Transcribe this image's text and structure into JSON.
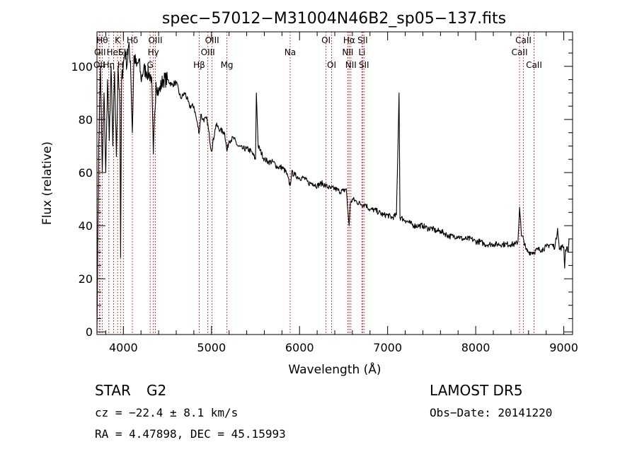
{
  "chart_data": {
    "type": "line",
    "title": "spec−57012−M31004N46B2_sp05−137.fits",
    "xlabel": "Wavelength (Å)",
    "ylabel": "Flux (relative)",
    "xlim": [
      3700,
      9100
    ],
    "ylim": [
      -1,
      113
    ],
    "xticks": [
      4000,
      5000,
      6000,
      7000,
      8000,
      9000
    ],
    "yticks": [
      0,
      20,
      40,
      60,
      80,
      100
    ],
    "grid": false,
    "series": [
      {
        "x": [
          3700,
          3720,
          3740,
          3760,
          3780,
          3800,
          3820,
          3840,
          3860,
          3880,
          3900,
          3920,
          3940,
          3960,
          3968,
          3980,
          4000,
          4020,
          4040,
          4060,
          4080,
          4102,
          4120,
          4150,
          4180,
          4200,
          4230,
          4260,
          4290,
          4320,
          4340,
          4370,
          4400,
          4450,
          4500,
          4550,
          4600,
          4650,
          4700,
          4750,
          4800,
          4830,
          4861,
          4880,
          4900,
          4950,
          5000,
          5050,
          5100,
          5150,
          5175,
          5200,
          5250,
          5300,
          5350,
          5400,
          5450,
          5500,
          5510,
          5530,
          5600,
          5650,
          5700,
          5750,
          5800,
          5850,
          5893,
          5910,
          5950,
          6000,
          6050,
          6100,
          6150,
          6200,
          6250,
          6300,
          6350,
          6400,
          6450,
          6500,
          6530,
          6550,
          6563,
          6575,
          6600,
          6650,
          6700,
          6750,
          6800,
          6850,
          6900,
          6950,
          7000,
          7050,
          7100,
          7130,
          7140,
          7150,
          7200,
          7250,
          7300,
          7350,
          7400,
          7450,
          7500,
          7550,
          7600,
          7650,
          7700,
          7750,
          7800,
          7850,
          7900,
          7950,
          8000,
          8050,
          8100,
          8150,
          8200,
          8250,
          8300,
          8350,
          8400,
          8450,
          8480,
          8498,
          8520,
          8542,
          8570,
          8600,
          8662,
          8700,
          8750,
          8800,
          8850,
          8900,
          8930,
          8950,
          8980,
          9000,
          9010,
          9020,
          9040,
          9050,
          9060
        ],
        "y": [
          0,
          70,
          100,
          60,
          90,
          60,
          95,
          72,
          100,
          70,
          98,
          66,
          100,
          85,
          28,
          95,
          101,
          106,
          100,
          108,
          102,
          75,
          104,
          100,
          102,
          95,
          99,
          98,
          97,
          96,
          67,
          94,
          90,
          95,
          95,
          93,
          94,
          88,
          90,
          85,
          85,
          80,
          75,
          82,
          80,
          80,
          68,
          78,
          76,
          75,
          68,
          72,
          73,
          70,
          69,
          69,
          68,
          65,
          90,
          70,
          65,
          64,
          64,
          62,
          62,
          60,
          55,
          60,
          59,
          58,
          58,
          56,
          56,
          55,
          56,
          55,
          54,
          54,
          53,
          53,
          54,
          45,
          40,
          48,
          50,
          49,
          48,
          48,
          46,
          46,
          45,
          44,
          44,
          43,
          44,
          90,
          43,
          43,
          42,
          41,
          40,
          40,
          40,
          39,
          39,
          38,
          38,
          37,
          36,
          36,
          36,
          35,
          35,
          35,
          34,
          34,
          33,
          33,
          33,
          33,
          33,
          33,
          33,
          33,
          34,
          47,
          36,
          35,
          31,
          30,
          30,
          31,
          31,
          32,
          33,
          32,
          39,
          31,
          32,
          32,
          24,
          31,
          32,
          30,
          35
        ]
      }
    ],
    "lines_top": [
      {
        "w": 3726,
        "label": "OII",
        "row": 3
      },
      {
        "w": 3734,
        "label": "OII",
        "row": 2
      },
      {
        "w": 3760,
        "label": "Hθ",
        "row": 1
      },
      {
        "w": 3835,
        "label": "Hη",
        "row": 3
      },
      {
        "w": 3889,
        "label": "HeI",
        "row": 2
      },
      {
        "w": 3934,
        "label": "K",
        "row": 1
      },
      {
        "w": 3968,
        "label": "H",
        "row": 3
      },
      {
        "w": 4000,
        "label": "SII",
        "row": 2
      },
      {
        "w": 4102,
        "label": "Hδ",
        "row": 1
      },
      {
        "w": 4304,
        "label": "G",
        "row": 3
      },
      {
        "w": 4340,
        "label": "Hγ",
        "row": 2
      },
      {
        "w": 4363,
        "label": "OIII",
        "row": 1
      },
      {
        "w": 4861,
        "label": "Hβ",
        "row": 3
      },
      {
        "w": 4959,
        "label": "OIII",
        "row": 2
      },
      {
        "w": 5007,
        "label": "OIII",
        "row": 1
      },
      {
        "w": 5175,
        "label": "Mg",
        "row": 3
      },
      {
        "w": 5893,
        "label": "Na",
        "row": 2
      },
      {
        "w": 6300,
        "label": "OI",
        "row": 1
      },
      {
        "w": 6364,
        "label": "OI",
        "row": 3
      },
      {
        "w": 6548,
        "label": "NII",
        "row": 2
      },
      {
        "w": 6563,
        "label": "Hα",
        "row": 1
      },
      {
        "w": 6583,
        "label": "NII",
        "row": 3
      },
      {
        "w": 6708,
        "label": "Li",
        "row": 2
      },
      {
        "w": 6716,
        "label": "SII",
        "row": 1
      },
      {
        "w": 6731,
        "label": "SII",
        "row": 3
      },
      {
        "w": 8498,
        "label": "CaII",
        "row": 2
      },
      {
        "w": 8542,
        "label": "CaII",
        "row": 1
      },
      {
        "w": 8662,
        "label": "CaII",
        "row": 3
      }
    ],
    "line_color": "#cc0000",
    "spectrum_color": "#000000"
  },
  "info": {
    "class": "STAR",
    "subclass": "G2",
    "survey": "LAMOST DR5",
    "cz": "cz = −22.4 ± 8.1 km/s",
    "obs_date": "Obs−Date: 20141220",
    "coords": "RA =   4.47898, DEC =  45.15993"
  }
}
